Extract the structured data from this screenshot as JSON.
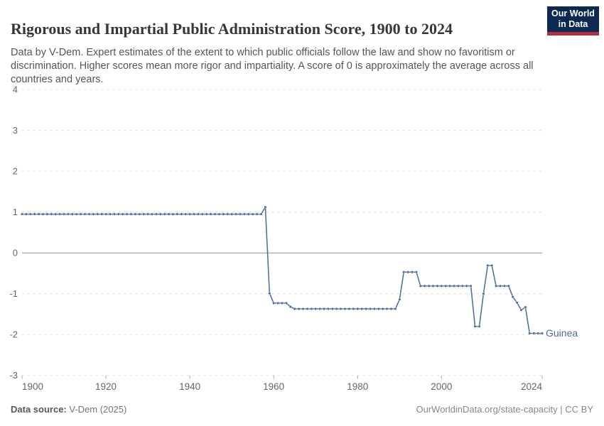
{
  "header": {
    "title": "Rigorous and Impartial Public Administration Score, 1900 to 2024",
    "subtitle": "Data by V-Dem. Expert estimates of the extent to which public officials follow the law and show no favoritism or discrimination. Higher scores mean more rigor and impartiality. A score of 0 is approximately the average across all countries and years.",
    "logo": {
      "line1": "Our World",
      "line2": "in Data",
      "bg_color": "#0c2a51",
      "accent_color": "#b12d40"
    }
  },
  "chart_data": {
    "type": "line",
    "title": "Rigorous and Impartial Public Administration Score, 1900 to 2024",
    "xlabel": "",
    "ylabel": "",
    "xlim": [
      1900,
      2024
    ],
    "ylim": [
      -3,
      4
    ],
    "xticks": [
      1900,
      1920,
      1940,
      1960,
      1980,
      2000,
      2024
    ],
    "yticks": [
      4,
      3,
      2,
      1,
      0,
      -1,
      -2,
      -3
    ],
    "grid": "horizontal dashed gridlines, solid line at zero",
    "legend": "label at end of line",
    "colors": {
      "line": "#4C6A9C",
      "grid": "#dadada",
      "zero_line": "#8f8f8f",
      "axis_text": "#666666",
      "tick_mark": "#adadad"
    },
    "series": [
      {
        "name": "Guinea",
        "color": "#4C6A9C",
        "start_year": 1900,
        "values": [
          0.95,
          0.95,
          0.95,
          0.95,
          0.95,
          0.95,
          0.95,
          0.95,
          0.95,
          0.95,
          0.95,
          0.95,
          0.95,
          0.95,
          0.95,
          0.95,
          0.95,
          0.95,
          0.95,
          0.95,
          0.95,
          0.95,
          0.95,
          0.95,
          0.95,
          0.95,
          0.95,
          0.95,
          0.95,
          0.95,
          0.95,
          0.95,
          0.95,
          0.95,
          0.95,
          0.95,
          0.95,
          0.95,
          0.95,
          0.95,
          0.95,
          0.95,
          0.95,
          0.95,
          0.95,
          0.95,
          0.95,
          0.95,
          0.95,
          0.95,
          0.95,
          0.95,
          0.95,
          0.95,
          0.95,
          0.95,
          0.95,
          0.95,
          1.12,
          -0.99,
          -1.23,
          -1.23,
          -1.23,
          -1.23,
          -1.32,
          -1.37,
          -1.37,
          -1.37,
          -1.37,
          -1.37,
          -1.37,
          -1.37,
          -1.37,
          -1.37,
          -1.37,
          -1.37,
          -1.37,
          -1.37,
          -1.37,
          -1.37,
          -1.37,
          -1.37,
          -1.37,
          -1.37,
          -1.37,
          -1.37,
          -1.37,
          -1.37,
          -1.37,
          -1.37,
          -1.14,
          -0.47,
          -0.47,
          -0.47,
          -0.47,
          -0.81,
          -0.81,
          -0.81,
          -0.81,
          -0.81,
          -0.81,
          -0.81,
          -0.81,
          -0.81,
          -0.81,
          -0.81,
          -0.81,
          -0.81,
          -1.8,
          -1.8,
          -1.0,
          -0.31,
          -0.31,
          -0.81,
          -0.81,
          -0.81,
          -0.81,
          -1.08,
          -1.22,
          -1.4,
          -1.33,
          -1.97,
          -1.97,
          -1.97,
          -1.97
        ]
      }
    ]
  },
  "footer": {
    "source_label": "Data source:",
    "source_value": " V-Dem (2025)",
    "credit": "OurWorldinData.org/state-capacity | CC BY"
  }
}
